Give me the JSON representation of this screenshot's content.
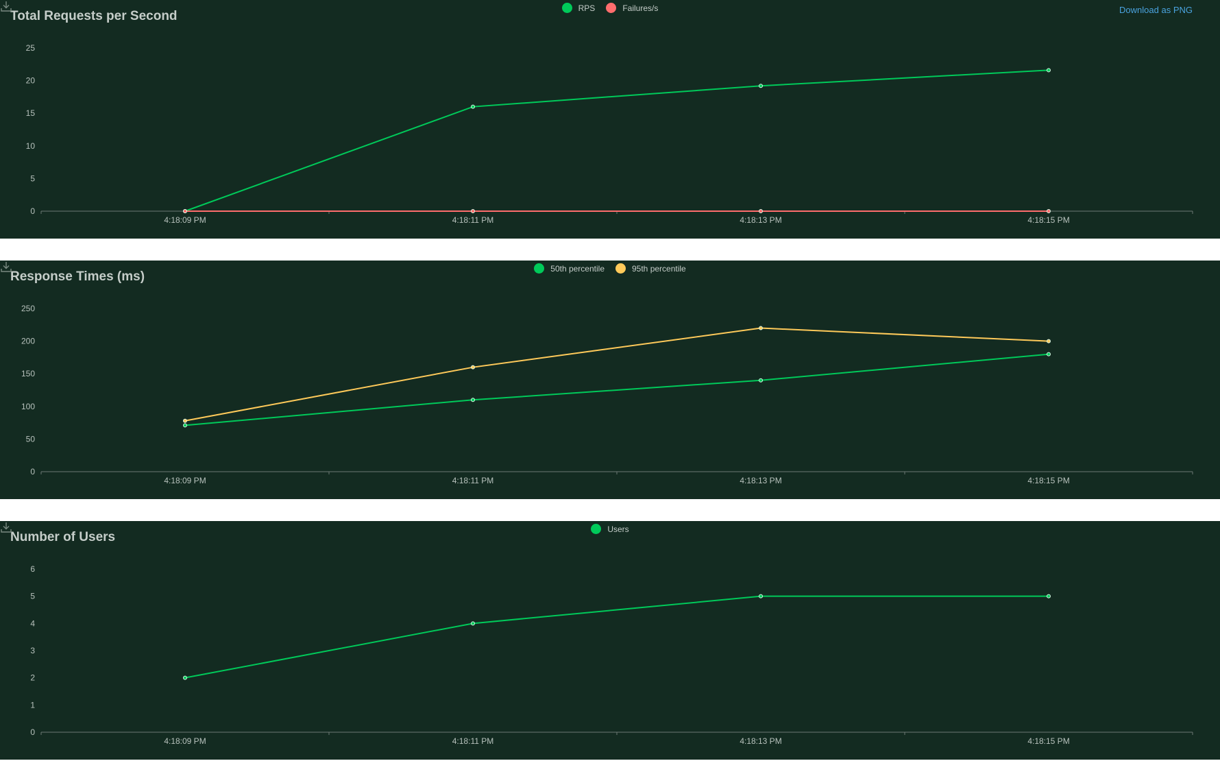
{
  "download_label": "Download as PNG",
  "icons": {
    "download": "download-icon"
  },
  "chart_data": [
    {
      "id": "rps",
      "type": "line",
      "title": "Total Requests per Second",
      "x": [
        "4:18:09 PM",
        "4:18:11 PM",
        "4:18:13 PM",
        "4:18:15 PM"
      ],
      "yticks": [
        0,
        5,
        10,
        15,
        20,
        25
      ],
      "ylim": [
        0,
        25
      ],
      "series": [
        {
          "name": "RPS",
          "color": "#00ca5a",
          "values": [
            0,
            16,
            19.2,
            21.6
          ]
        },
        {
          "name": "Failures/s",
          "color": "#ff6d6d",
          "values": [
            0,
            0,
            0,
            0
          ]
        }
      ],
      "legend": "top-center",
      "grid": false
    },
    {
      "id": "resp",
      "type": "line",
      "title": "Response Times (ms)",
      "x": [
        "4:18:09 PM",
        "4:18:11 PM",
        "4:18:13 PM",
        "4:18:15 PM"
      ],
      "yticks": [
        0,
        50,
        100,
        150,
        200,
        250
      ],
      "ylim": [
        0,
        250
      ],
      "series": [
        {
          "name": "50th percentile",
          "color": "#00ca5a",
          "values": [
            71,
            110,
            140,
            180
          ]
        },
        {
          "name": "95th percentile",
          "color": "#ffca5a",
          "values": [
            78,
            160,
            220,
            200
          ]
        }
      ],
      "legend": "top-center",
      "grid": false
    },
    {
      "id": "users",
      "type": "line",
      "title": "Number of Users",
      "x": [
        "4:18:09 PM",
        "4:18:11 PM",
        "4:18:13 PM",
        "4:18:15 PM"
      ],
      "yticks": [
        0,
        1,
        2,
        3,
        4,
        5,
        6
      ],
      "ylim": [
        0,
        6
      ],
      "series": [
        {
          "name": "Users",
          "color": "#00ca5a",
          "values": [
            2,
            4,
            5,
            5
          ]
        }
      ],
      "legend": "top-center",
      "grid": false
    }
  ]
}
